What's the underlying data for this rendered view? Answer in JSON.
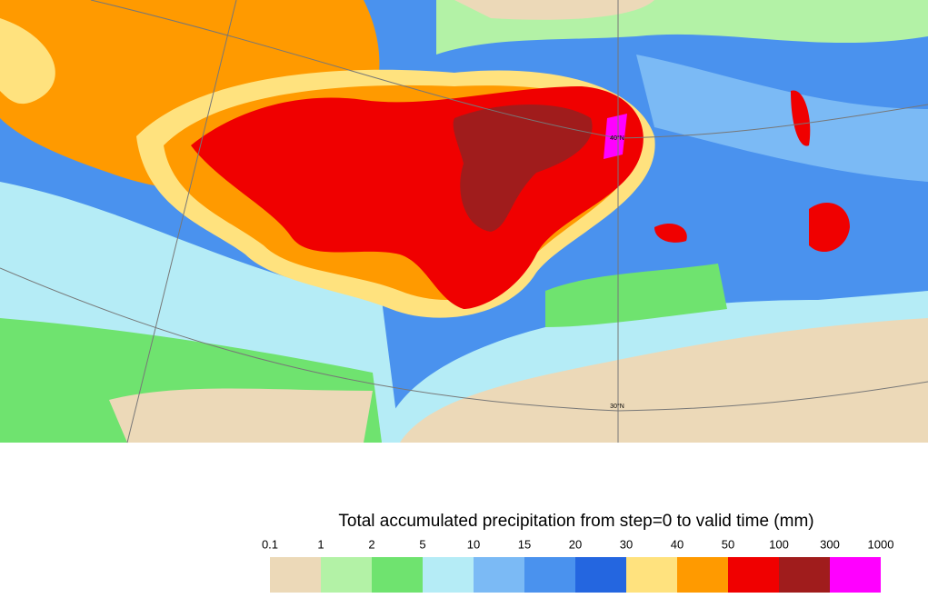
{
  "map": {
    "labels": [
      "40°N",
      "30°N"
    ]
  },
  "legend": {
    "title": "Total accumulated precipitation from step=0 to valid time (mm)",
    "ticks": [
      0.1,
      1,
      2,
      5,
      10,
      15,
      20,
      30,
      40,
      50,
      100,
      300,
      1000
    ],
    "colors": [
      "#ecd9b8",
      "#b3f2a6",
      "#6fe36f",
      "#b5ecf6",
      "#7bbaf5",
      "#4a92ee",
      "#2466e0",
      "#ffe27e",
      "#ff9a00",
      "#f00000",
      "#a01c1c",
      "#ff00ff"
    ]
  }
}
